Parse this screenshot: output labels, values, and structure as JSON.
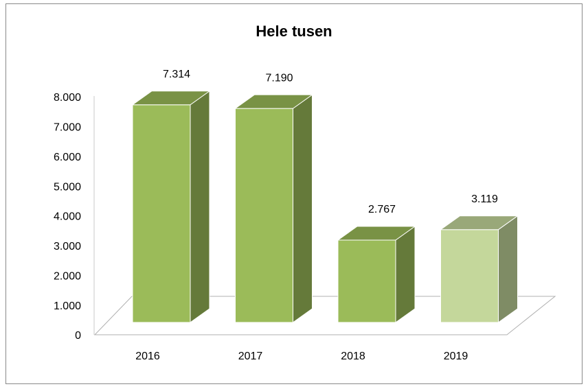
{
  "chart_data": {
    "type": "bar3d",
    "title": "Hele tusen",
    "categories": [
      "2016",
      "2017",
      "2018",
      "2019"
    ],
    "values": [
      7314,
      7190,
      2767,
      3119
    ],
    "value_labels": [
      "7.314",
      "7.190",
      "2.767",
      "3.119"
    ],
    "colors": [
      "#9bbb59",
      "#9bbb59",
      "#9bbb59",
      "#c4d79b"
    ],
    "ylim": [
      0,
      8000
    ],
    "yticks": [
      0,
      {
        "value": 1000,
        "label": "1.000"
      },
      {
        "value": 2000,
        "label": "2.000"
      },
      {
        "value": 3000,
        "label": "3.000"
      },
      {
        "value": 4000,
        "label": "4.000"
      },
      {
        "value": 5000,
        "label": "5.000"
      },
      {
        "value": 6000,
        "label": "6.000"
      },
      {
        "value": 7000,
        "label": "7.000"
      },
      {
        "value": 8000,
        "label": "8.000"
      }
    ],
    "grid": false
  }
}
